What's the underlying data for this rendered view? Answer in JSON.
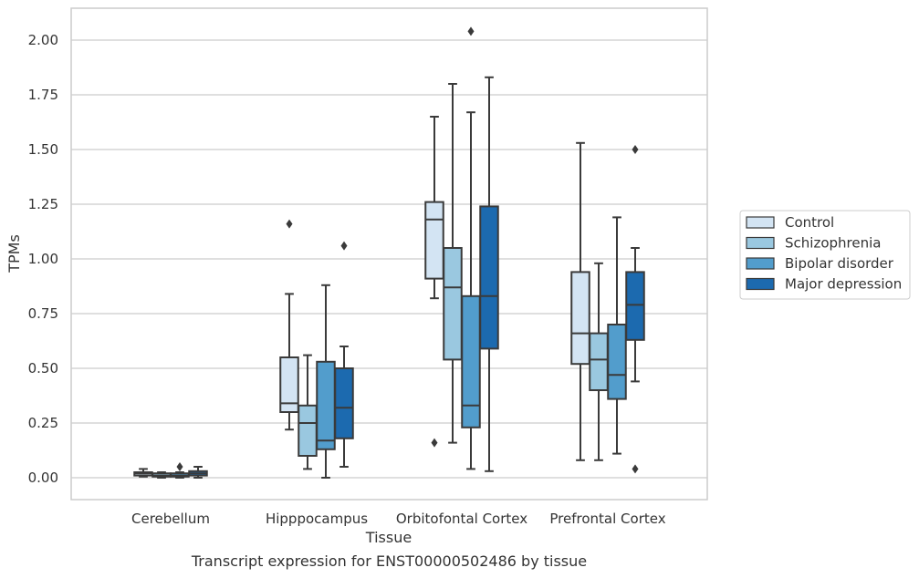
{
  "caption": "Transcript expression for ENST00000502486 by tissue",
  "chart_data": {
    "type": "box",
    "xlabel": "Tissue",
    "ylabel": "TPMs",
    "ylim": [
      -0.1,
      2.15
    ],
    "yticks": [
      "0.00",
      "0.25",
      "0.50",
      "0.75",
      "1.00",
      "1.25",
      "1.50",
      "1.75",
      "2.00"
    ],
    "categories": [
      "Cerebellum",
      "Hipppocampus",
      "Orbitofontal Cortex",
      "Prefrontal Cortex"
    ],
    "grid": "horizontal",
    "legend_position": "right",
    "series": [
      {
        "name": "Control",
        "color": "#d3e4f3",
        "boxes": [
          {
            "whislo": 0.005,
            "q1": 0.01,
            "med": 0.02,
            "q3": 0.025,
            "whishi": 0.04,
            "fliers": []
          },
          {
            "whislo": 0.22,
            "q1": 0.3,
            "med": 0.34,
            "q3": 0.55,
            "whishi": 0.84,
            "fliers": [
              1.16
            ]
          },
          {
            "whislo": 0.82,
            "q1": 0.91,
            "med": 1.18,
            "q3": 1.26,
            "whishi": 1.65,
            "fliers": [
              0.16
            ]
          },
          {
            "whislo": 0.08,
            "q1": 0.52,
            "med": 0.66,
            "q3": 0.94,
            "whishi": 1.53,
            "fliers": []
          }
        ]
      },
      {
        "name": "Schizophrenia",
        "color": "#9ac8e0",
        "boxes": [
          {
            "whislo": 0.0,
            "q1": 0.005,
            "med": 0.01,
            "q3": 0.02,
            "whishi": 0.025,
            "fliers": []
          },
          {
            "whislo": 0.04,
            "q1": 0.1,
            "med": 0.25,
            "q3": 0.33,
            "whishi": 0.56,
            "fliers": []
          },
          {
            "whislo": 0.16,
            "q1": 0.54,
            "med": 0.87,
            "q3": 1.05,
            "whishi": 1.8,
            "fliers": []
          },
          {
            "whislo": 0.08,
            "q1": 0.4,
            "med": 0.54,
            "q3": 0.66,
            "whishi": 0.98,
            "fliers": []
          }
        ]
      },
      {
        "name": "Bipolar disorder",
        "color": "#529dcc",
        "boxes": [
          {
            "whislo": 0.0,
            "q1": 0.005,
            "med": 0.01,
            "q3": 0.02,
            "whishi": 0.025,
            "fliers": [
              0.05
            ]
          },
          {
            "whislo": 0.0,
            "q1": 0.13,
            "med": 0.17,
            "q3": 0.53,
            "whishi": 0.88,
            "fliers": []
          },
          {
            "whislo": 0.04,
            "q1": 0.23,
            "med": 0.33,
            "q3": 0.83,
            "whishi": 1.67,
            "fliers": [
              2.04
            ]
          },
          {
            "whislo": 0.11,
            "q1": 0.36,
            "med": 0.47,
            "q3": 0.7,
            "whishi": 1.19,
            "fliers": []
          }
        ]
      },
      {
        "name": "Major depression",
        "color": "#1c6aaf",
        "boxes": [
          {
            "whislo": 0.0,
            "q1": 0.01,
            "med": 0.02,
            "q3": 0.03,
            "whishi": 0.05,
            "fliers": []
          },
          {
            "whislo": 0.05,
            "q1": 0.18,
            "med": 0.32,
            "q3": 0.5,
            "whishi": 0.6,
            "fliers": [
              1.06
            ]
          },
          {
            "whislo": 0.03,
            "q1": 0.59,
            "med": 0.83,
            "q3": 1.24,
            "whishi": 1.83,
            "fliers": []
          },
          {
            "whislo": 0.44,
            "q1": 0.63,
            "med": 0.79,
            "q3": 0.94,
            "whishi": 1.05,
            "fliers": [
              1.5,
              0.04
            ]
          }
        ]
      }
    ]
  }
}
